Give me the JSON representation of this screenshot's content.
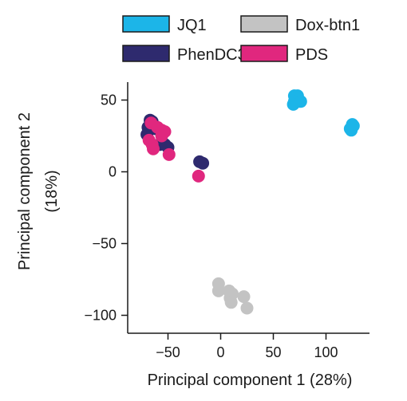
{
  "chart_data": {
    "type": "scatter",
    "xlabel": "Principal component 1 (28%)",
    "ylabel_line1": "Principal component 2",
    "ylabel_line2": "(18%)",
    "xlim": [
      -88,
      142
    ],
    "ylim": [
      -105,
      63
    ],
    "xticks": [
      -50,
      0,
      50,
      100
    ],
    "yticks": [
      50,
      0,
      -50,
      -100
    ],
    "xtick_labels": [
      "−50",
      "0",
      "50",
      "100"
    ],
    "ytick_labels": [
      "50",
      "0",
      "−50",
      "−100"
    ],
    "grid": false,
    "legend_placement": "top",
    "series": [
      {
        "name": "JQ1",
        "color": "#1cb5e8",
        "points": [
          [
            70,
            53
          ],
          [
            73,
            53
          ],
          [
            70,
            49
          ],
          [
            76,
            49
          ],
          [
            69,
            47
          ],
          [
            125,
            33
          ],
          [
            126,
            32
          ],
          [
            123,
            30
          ],
          [
            124,
            29
          ]
        ]
      },
      {
        "name": "Dox-btn1",
        "color": "#c3c3c3",
        "points": [
          [
            -2,
            -78
          ],
          [
            -2,
            -83
          ],
          [
            8,
            -83
          ],
          [
            11,
            -85
          ],
          [
            9,
            -88
          ],
          [
            22,
            -87
          ],
          [
            10,
            -91
          ],
          [
            25,
            -95
          ]
        ]
      },
      {
        "name": "PhenDC3",
        "color": "#2e2a6e",
        "points": [
          [
            -67,
            36
          ],
          [
            -65,
            35
          ],
          [
            -69,
            31
          ],
          [
            -70,
            26
          ],
          [
            -62,
            30
          ],
          [
            -56,
            28
          ],
          [
            -58,
            19
          ],
          [
            -53,
            19
          ],
          [
            -50,
            17
          ],
          [
            -20,
            7
          ],
          [
            -17,
            6
          ]
        ]
      },
      {
        "name": "PDS",
        "color": "#e0277e",
        "points": [
          [
            -66,
            34
          ],
          [
            -60,
            31
          ],
          [
            -56,
            29
          ],
          [
            -53,
            28
          ],
          [
            -56,
            25
          ],
          [
            -68,
            22
          ],
          [
            -65,
            19
          ],
          [
            -64,
            16
          ],
          [
            -49,
            12
          ],
          [
            -21,
            -3
          ]
        ]
      }
    ]
  },
  "legend": [
    {
      "label": "JQ1",
      "color": "#1cb5e8"
    },
    {
      "label": "Dox-btn1",
      "color": "#c3c3c3"
    },
    {
      "label": "PhenDC3",
      "color": "#2e2a6e"
    },
    {
      "label": "PDS",
      "color": "#e0277e"
    }
  ]
}
